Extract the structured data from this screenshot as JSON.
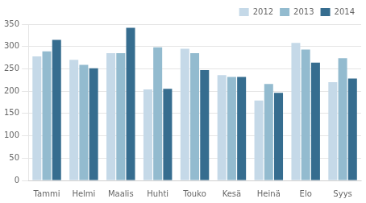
{
  "chart_data": {
    "type": "bar",
    "categories": [
      "Tammi",
      "Helmi",
      "Maalis",
      "Huhti",
      "Touko",
      "Kesä",
      "Heinä",
      "Elo",
      "Syys"
    ],
    "series": [
      {
        "name": "2012",
        "color": "#c5d9e8",
        "values": [
          278,
          270,
          285,
          204,
          295,
          236,
          179,
          308,
          220
        ]
      },
      {
        "name": "2013",
        "color": "#93bbcf",
        "values": [
          289,
          259,
          285,
          298,
          285,
          232,
          216,
          293,
          274
        ]
      },
      {
        "name": "2014",
        "color": "#366d8f",
        "values": [
          315,
          251,
          342,
          205,
          247,
          232,
          196,
          264,
          228
        ]
      }
    ],
    "ylim": [
      0,
      350
    ],
    "yticks": [
      0,
      50,
      100,
      150,
      200,
      250,
      300,
      350
    ],
    "grid": true,
    "legend": "upper right"
  }
}
